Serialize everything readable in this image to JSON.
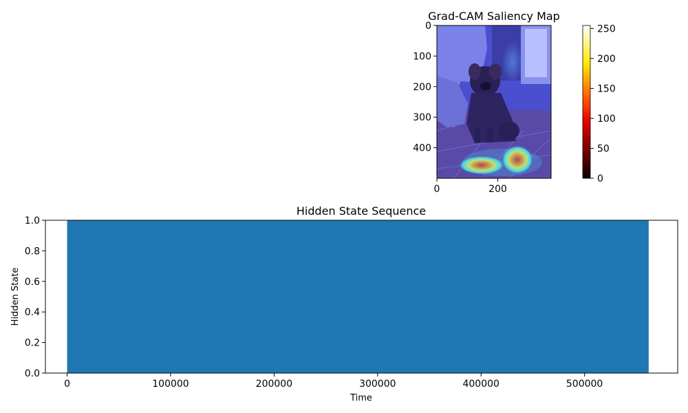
{
  "chart_data": [
    {
      "type": "heatmap",
      "title": "Grad-CAM Saliency Map",
      "image": "puppy-photo-with-jet-heatmap-overlay",
      "x_ticks": [
        "0",
        "200"
      ],
      "y_ticks": [
        "0",
        "100",
        "200",
        "300",
        "400"
      ],
      "x_tick_values": [
        0,
        200
      ],
      "y_tick_values": [
        0,
        100,
        200,
        300,
        400
      ],
      "xlim": [
        0,
        375
      ],
      "ylim": [
        500,
        0
      ],
      "colorbar": {
        "colormap": "hot",
        "range": [
          0,
          255
        ],
        "ticks": [
          "0",
          "50",
          "100",
          "150",
          "200",
          "250"
        ],
        "tick_values": [
          0,
          50,
          100,
          150,
          200,
          250
        ]
      },
      "overlay_colormap": "jet",
      "colors": {
        "background_blue": "#4a4fcf",
        "hot_red": "#e01010",
        "warm_yellow": "#f0e040",
        "cool_cyan": "#40d0f0"
      }
    },
    {
      "type": "area",
      "title": "Hidden State Sequence",
      "xlabel": "Time",
      "ylabel": "Hidden State",
      "x_ticks": [
        "0",
        "100000",
        "200000",
        "300000",
        "400000",
        "500000"
      ],
      "x_tick_values": [
        0,
        100000,
        200000,
        300000,
        400000,
        500000
      ],
      "y_ticks": [
        "0.0",
        "0.2",
        "0.4",
        "0.6",
        "0.8",
        "1.0"
      ],
      "y_tick_values": [
        0,
        0.2,
        0.4,
        0.6,
        0.8,
        1.0
      ],
      "xlim": [
        -21000,
        590000
      ],
      "ylim": [
        0,
        1
      ],
      "fill": {
        "x_start": 0,
        "x_end": 562000,
        "value": 1.0
      },
      "grid": false,
      "color": "#1f77b4"
    }
  ]
}
